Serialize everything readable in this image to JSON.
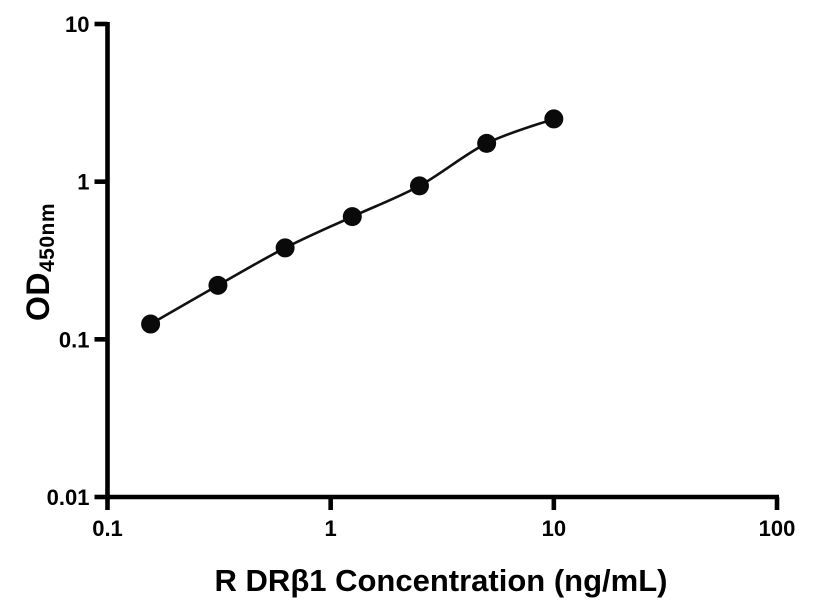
{
  "figure": {
    "background_color": "#ffffff",
    "foreground_color": "#000000"
  },
  "chart_data": {
    "type": "scatter",
    "subtype": "standard-curve-with-fit-line",
    "x": [
      0.156,
      0.3125,
      0.625,
      1.25,
      2.5,
      5,
      10
    ],
    "y": [
      0.125,
      0.22,
      0.38,
      0.6,
      0.94,
      1.75,
      2.5
    ],
    "title": "",
    "xlabel": "R DRβ1 Concentration (ng/mL)",
    "ylabel_main": "OD",
    "ylabel_sub": "450nm",
    "x_scale": "log",
    "y_scale": "log",
    "xlim": [
      0.1,
      100
    ],
    "ylim": [
      0.01,
      10
    ],
    "x_ticks": [
      0.1,
      1,
      10,
      100
    ],
    "x_tick_labels": [
      "0.1",
      "1",
      "10",
      "100"
    ],
    "y_ticks": [
      0.01,
      0.1,
      1,
      10
    ],
    "y_tick_labels": [
      "0.01",
      "0.1",
      "1",
      "10"
    ],
    "grid": false,
    "legend": null,
    "marker_color": "#0a0a0a",
    "line_color": "#111111",
    "axis_color": "#000000"
  }
}
